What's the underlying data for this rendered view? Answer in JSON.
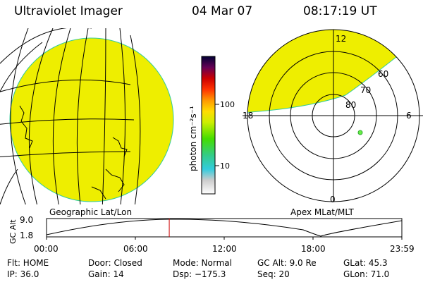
{
  "header": {
    "instrument": "Ultraviolet Imager",
    "date": "04 Mar 07",
    "time": "08:17:19 UT"
  },
  "left_panel": {
    "label": "Geographic Lat/Lon",
    "fill_color": "#eeee00"
  },
  "colorbar": {
    "unit_label": "photon cm⁻²s⁻¹",
    "ticks": [
      "100",
      "10"
    ],
    "scale": "log"
  },
  "right_panel": {
    "label": "Apex MLat/MLT",
    "mlt_labels": {
      "top": "12",
      "left": "18",
      "right": "6",
      "bottom": "0"
    },
    "lat_labels": [
      "60",
      "70",
      "80"
    ],
    "fill_color": "#eeee00"
  },
  "timeline": {
    "ylabel": "GC Alt",
    "yticks": [
      "9.0",
      "1.8"
    ],
    "xticks": [
      "00:00",
      "06:00",
      "12:00",
      "18:00",
      "23:59"
    ],
    "marker_time": "08:17",
    "marker_color": "#cc0000"
  },
  "status": {
    "row1": [
      {
        "key": "flt",
        "text": "Flt: HOME"
      },
      {
        "key": "door",
        "text": "Door: Closed"
      },
      {
        "key": "mode",
        "text": "Mode: Normal"
      },
      {
        "key": "gcalt",
        "text": "GC Alt: 9.0 Re"
      },
      {
        "key": "glat",
        "text": "GLat:  45.3"
      }
    ],
    "row2": [
      {
        "key": "ip",
        "text": "IP: 36.0"
      },
      {
        "key": "gain",
        "text": "Gain: 14"
      },
      {
        "key": "dsp",
        "text": "Dsp: −175.3"
      },
      {
        "key": "seq",
        "text": "Seq: 20"
      },
      {
        "key": "glon",
        "text": "GLon:  71.0"
      }
    ]
  }
}
